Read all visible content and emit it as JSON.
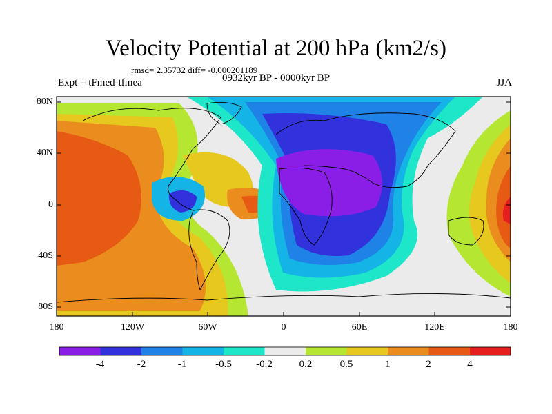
{
  "title": "Velocity Potential at 200 hPa (km2/s)",
  "stats": "rmsd= 2.35732 diff= -0.000201189",
  "experiment": "Expt = tFmed-tfmea",
  "period": "0932kyr BP - 0000kyr BP",
  "season": "JJA",
  "lat_labels": [
    "80N",
    "40N",
    "0",
    "40S",
    "80S"
  ],
  "lon_labels": [
    "180",
    "120W",
    "60W",
    "0",
    "60E",
    "120E",
    "180"
  ],
  "colorbar": {
    "labels": [
      "-4",
      "-2",
      "-1",
      "-0.5",
      "-0.2",
      "0.2",
      "0.5",
      "1",
      "2",
      "4"
    ],
    "colors": [
      "#8a1ee6",
      "#3232dc",
      "#1e82e6",
      "#14b4e6",
      "#1ee6c8",
      "#ebebeb",
      "#b4e632",
      "#e6c81e",
      "#eb8c1e",
      "#e65a14",
      "#e61e1e"
    ]
  }
}
